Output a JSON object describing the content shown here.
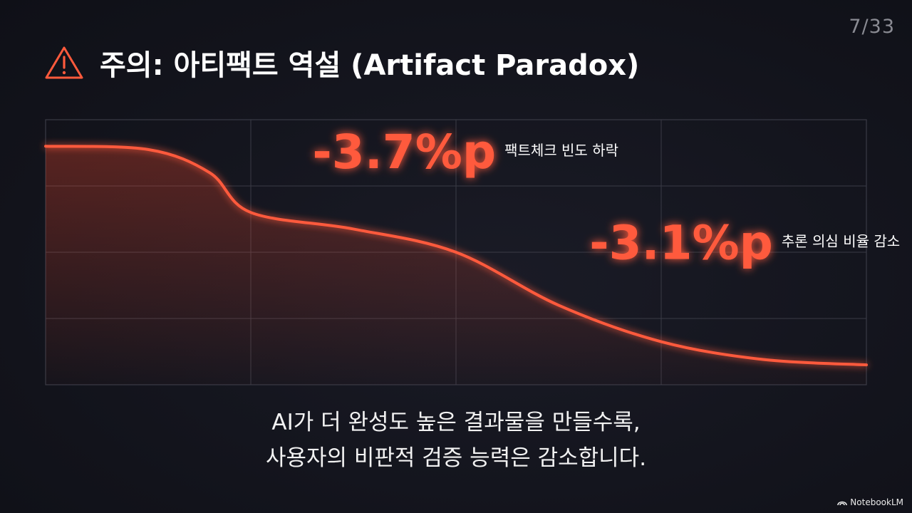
{
  "page_number": "7/33",
  "title": "주의: 아티팩트 역설 (Artifact Paradox)",
  "caption": {
    "line1": "AI가 더 완성도 높은 결과물을 만들수록,",
    "line2": "사용자의 비판적 검증 능력은 감소합니다."
  },
  "brand": "NotebookLM",
  "colors": {
    "accent": "#ff5a3c",
    "background": "#13141d",
    "grid": "#3a3b46",
    "text": "#ffffff"
  },
  "icons": {
    "warning": "warning-triangle-icon",
    "brand": "notebooklm-logo-icon"
  },
  "chart_data": {
    "type": "area",
    "title": "",
    "xlabel": "",
    "ylabel": "",
    "xlim": [
      0,
      4
    ],
    "ylim": [
      0,
      4
    ],
    "grid": true,
    "series": [
      {
        "x": [
          0,
          0.5,
          0.8,
          1.0,
          1.5,
          2.0,
          2.5,
          3.0,
          3.5,
          4.0
        ],
        "values": [
          3.6,
          3.55,
          3.2,
          2.6,
          2.35,
          2.0,
          1.2,
          0.65,
          0.38,
          0.3
        ]
      }
    ],
    "annotations": [
      {
        "value": "-3.7%p",
        "label": "팩트체크 빈도 하락",
        "x": 1.3,
        "y": 3.27
      },
      {
        "value": "-3.1%p",
        "label": "추론 의심 비율 감소",
        "x": 2.65,
        "y": 1.9
      }
    ]
  }
}
